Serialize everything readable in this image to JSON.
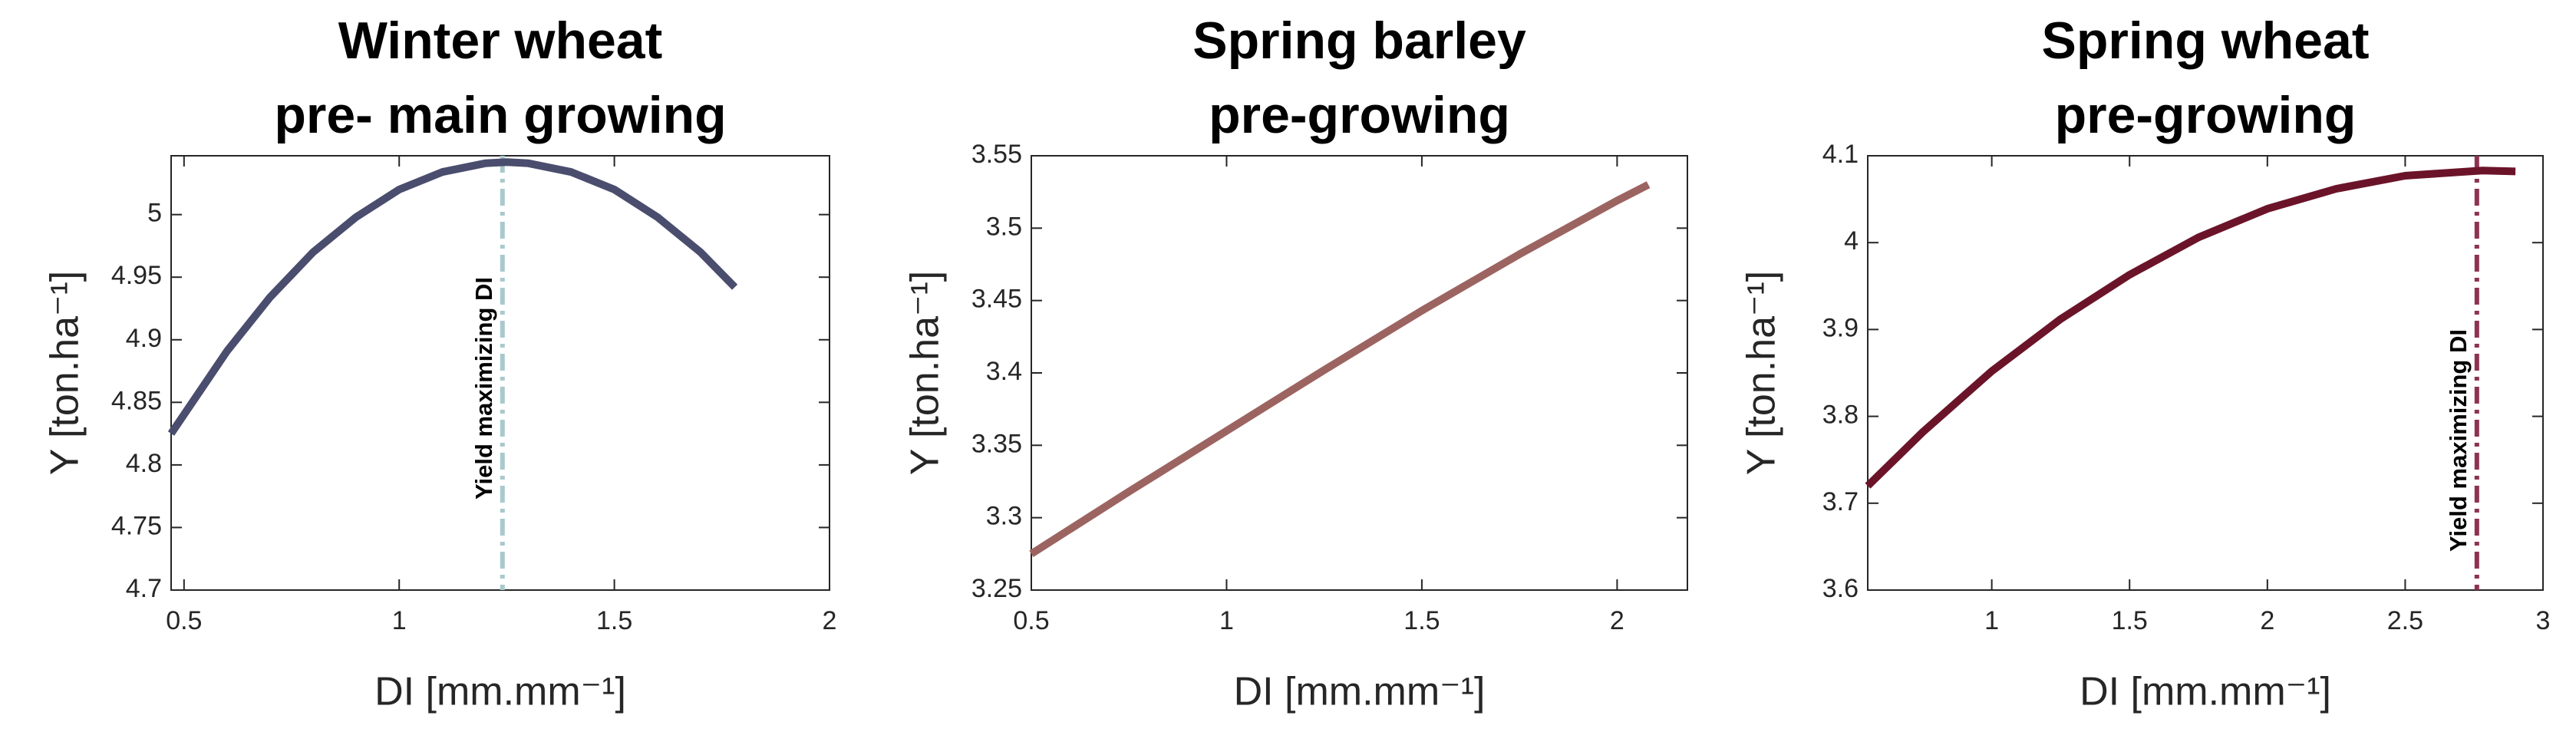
{
  "chart_data": [
    {
      "type": "line",
      "title": [
        "Winter wheat",
        "pre- main growing"
      ],
      "xlabel": "DI [mm.mm⁻¹]",
      "ylabel": "Y [ton.ha⁻¹]",
      "x": [
        0.47,
        0.6,
        0.7,
        0.8,
        0.9,
        1.0,
        1.1,
        1.2,
        1.25,
        1.3,
        1.4,
        1.5,
        1.6,
        1.7,
        1.78
      ],
      "values": [
        4.825,
        4.891,
        4.934,
        4.97,
        4.998,
        5.02,
        5.034,
        5.041,
        5.042,
        5.041,
        5.034,
        5.02,
        4.998,
        4.97,
        4.942
      ],
      "color": "#4a4d6d",
      "xlim": [
        0.47,
        2
      ],
      "xticks": [
        0.5,
        1,
        1.5,
        2
      ],
      "ylim": [
        4.7,
        5.047
      ],
      "yticks": [
        4.7,
        4.75,
        4.8,
        4.85,
        4.9,
        4.95,
        5
      ],
      "annotations": [
        {
          "text": "Yield maximizing DI",
          "x": 1.24,
          "color": "#a9c9cd"
        }
      ]
    },
    {
      "type": "line",
      "title": [
        "Spring barley",
        "pre-growing"
      ],
      "xlabel": "DI [mm.mm⁻¹]",
      "ylabel": "Y [ton.ha⁻¹]",
      "x": [
        0.5,
        0.75,
        1.0,
        1.25,
        1.5,
        1.75,
        2.0,
        2.08
      ],
      "values": [
        3.275,
        3.318,
        3.36,
        3.402,
        3.443,
        3.482,
        3.519,
        3.53
      ],
      "color": "#9c6461",
      "xlim": [
        0.5,
        2.18
      ],
      "xticks": [
        0.5,
        1,
        1.5,
        2
      ],
      "ylim": [
        3.25,
        3.55
      ],
      "yticks": [
        3.25,
        3.3,
        3.35,
        3.4,
        3.45,
        3.5,
        3.55
      ]
    },
    {
      "type": "line",
      "title": [
        "Spring wheat",
        "pre-growing"
      ],
      "xlabel": "DI [mm.mm⁻¹]",
      "ylabel": "Y [ton.ha⁻¹]",
      "x": [
        0.55,
        0.75,
        1.0,
        1.25,
        1.5,
        1.75,
        2.0,
        2.25,
        2.5,
        2.78,
        2.9
      ],
      "values": [
        3.72,
        3.782,
        3.852,
        3.912,
        3.963,
        4.006,
        4.039,
        4.062,
        4.077,
        4.083,
        4.082
      ],
      "color": "#6b1429",
      "xlim": [
        0.55,
        3
      ],
      "xticks": [
        1,
        1.5,
        2,
        2.5,
        3
      ],
      "ylim": [
        3.6,
        4.1
      ],
      "yticks": [
        3.6,
        3.7,
        3.8,
        3.9,
        4,
        4.1
      ],
      "annotations": [
        {
          "text": "Yield maximizing DI",
          "x": 2.76,
          "color": "#8c3352"
        }
      ]
    }
  ]
}
